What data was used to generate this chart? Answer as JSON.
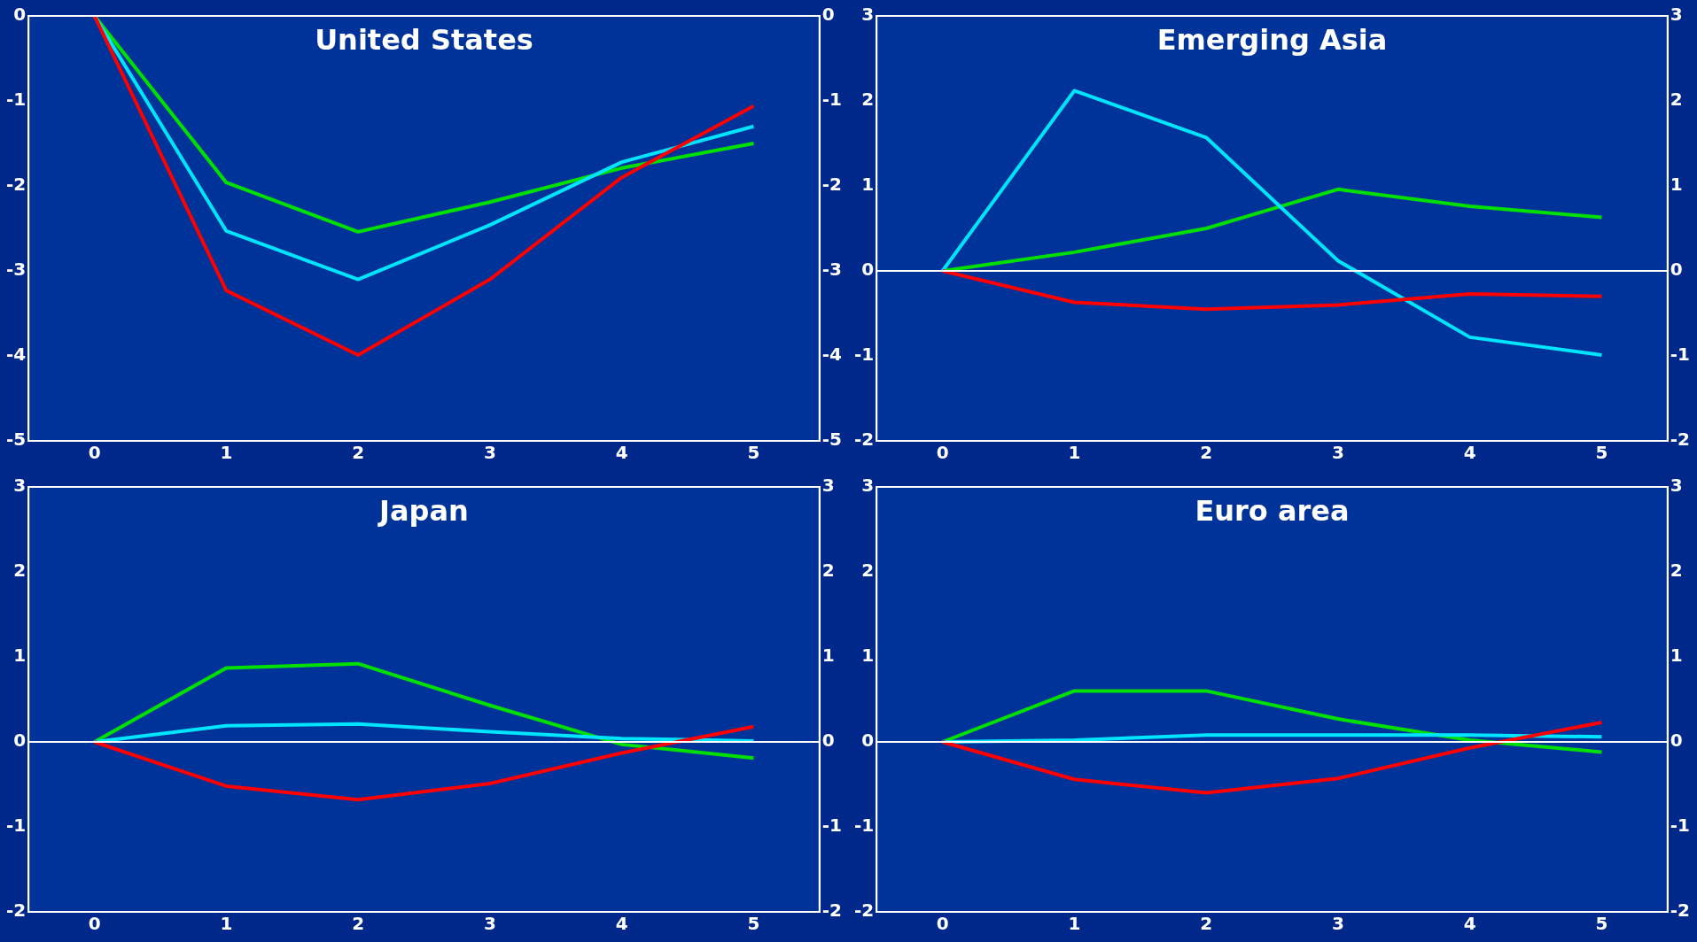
{
  "chart_data": [
    {
      "type": "line",
      "title": "United States",
      "x": [
        0,
        1,
        2,
        3,
        4,
        5
      ],
      "xlim": [
        -0.5,
        5.5
      ],
      "xticks": [
        0,
        1,
        2,
        3,
        4,
        5
      ],
      "ylim": [
        -5,
        0
      ],
      "yticks": [
        -5,
        -4,
        -3,
        -2,
        -1,
        0
      ],
      "y2lim": [
        -5,
        0
      ],
      "y2ticks": [
        -5,
        -4,
        -3,
        -2,
        -1,
        0
      ],
      "marker": "none",
      "legend": false,
      "series": [
        {
          "color": "#ff0000",
          "values": [
            0,
            -3.23,
            -3.99,
            -3.1,
            -1.9,
            -1.06
          ]
        },
        {
          "color": "#00e5ff",
          "values": [
            0,
            -2.53,
            -3.1,
            -2.46,
            -1.72,
            -1.3
          ]
        },
        {
          "color": "#00e000",
          "values": [
            0,
            -1.96,
            -2.54,
            -2.19,
            -1.79,
            -1.5
          ]
        }
      ]
    },
    {
      "type": "line",
      "title": "Emerging Asia",
      "x": [
        0,
        1,
        2,
        3,
        4,
        5
      ],
      "xlim": [
        -0.5,
        5.5
      ],
      "xticks": [
        0,
        1,
        2,
        3,
        4,
        5
      ],
      "ylim": [
        -2,
        3
      ],
      "yticks": [
        -2,
        -1,
        0,
        1,
        2,
        3
      ],
      "y2lim": [
        -2,
        3
      ],
      "y2ticks": [
        -2,
        -1,
        0,
        1,
        2,
        3
      ],
      "marker": "none",
      "legend": false,
      "ref_lines": [
        {
          "axis": "y",
          "value": 0,
          "color": "#ffffff"
        }
      ],
      "series": [
        {
          "color": "#ff0000",
          "values": [
            0,
            -0.37,
            -0.45,
            -0.4,
            -0.27,
            -0.3
          ]
        },
        {
          "color": "#00e5ff",
          "values": [
            0,
            2.12,
            1.57,
            0.12,
            -0.78,
            -0.99
          ]
        },
        {
          "color": "#00e000",
          "values": [
            0,
            0.22,
            0.5,
            0.96,
            0.76,
            0.63
          ]
        }
      ]
    },
    {
      "type": "line",
      "title": "Japan",
      "x": [
        0,
        1,
        2,
        3,
        4,
        5
      ],
      "xlim": [
        -0.5,
        5.5
      ],
      "xticks": [
        0,
        1,
        2,
        3,
        4,
        5
      ],
      "ylim": [
        -2,
        3
      ],
      "yticks": [
        -2,
        -1,
        0,
        1,
        2,
        3
      ],
      "y2lim": [
        -2,
        3
      ],
      "y2ticks": [
        -2,
        -1,
        0,
        1,
        2,
        3
      ],
      "marker": "none",
      "legend": false,
      "ref_lines": [
        {
          "axis": "y",
          "value": 0,
          "color": "#ffffff"
        }
      ],
      "series": [
        {
          "color": "#ff0000",
          "values": [
            0,
            -0.52,
            -0.68,
            -0.49,
            -0.13,
            0.18
          ]
        },
        {
          "color": "#00e5ff",
          "values": [
            0,
            0.19,
            0.21,
            0.12,
            0.04,
            0.01
          ]
        },
        {
          "color": "#00e000",
          "values": [
            0,
            0.87,
            0.92,
            0.43,
            -0.03,
            -0.19
          ]
        }
      ]
    },
    {
      "type": "line",
      "title": "Euro area",
      "x": [
        0,
        1,
        2,
        3,
        4,
        5
      ],
      "xlim": [
        -0.5,
        5.5
      ],
      "xticks": [
        0,
        1,
        2,
        3,
        4,
        5
      ],
      "ylim": [
        -2,
        3
      ],
      "yticks": [
        -2,
        -1,
        0,
        1,
        2,
        3
      ],
      "y2lim": [
        -2,
        3
      ],
      "y2ticks": [
        -2,
        -1,
        0,
        1,
        2,
        3
      ],
      "marker": "none",
      "legend": false,
      "ref_lines": [
        {
          "axis": "y",
          "value": 0,
          "color": "#ffffff"
        }
      ],
      "series": [
        {
          "color": "#ff0000",
          "values": [
            0,
            -0.44,
            -0.6,
            -0.43,
            -0.07,
            0.23
          ]
        },
        {
          "color": "#00e5ff",
          "values": [
            0,
            0.02,
            0.08,
            0.08,
            0.08,
            0.06
          ]
        },
        {
          "color": "#00e000",
          "values": [
            0,
            0.6,
            0.6,
            0.27,
            0.02,
            -0.12
          ]
        }
      ]
    }
  ]
}
